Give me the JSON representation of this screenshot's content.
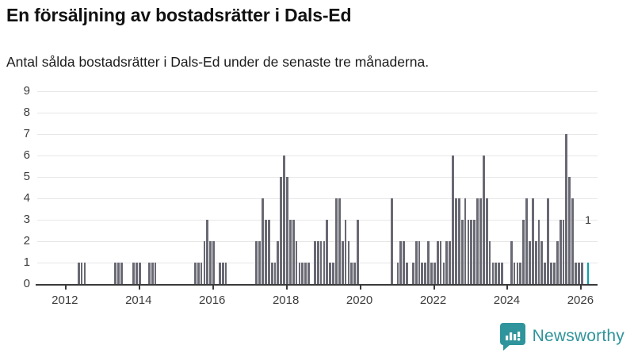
{
  "header": {
    "title": "En försäljning av bostadsrätter i Dals-Ed",
    "subtitle": "Antal sålda bostadsrätter i Dals-Ed under de senaste tre månaderna."
  },
  "chart_data": {
    "type": "bar",
    "title": "En försäljning av bostadsrätter i Dals-Ed",
    "subtitle": "Antal sålda bostadsrätter i Dals-Ed under de senaste tre månaderna.",
    "x_start_month": "2011-04",
    "x_end_month": "2026-03",
    "x": "months",
    "values": [
      0,
      0,
      0,
      0,
      0,
      0,
      0,
      0,
      0,
      0,
      0,
      0,
      0,
      1,
      1,
      1,
      0,
      0,
      0,
      0,
      0,
      0,
      0,
      0,
      0,
      1,
      1,
      1,
      0,
      0,
      0,
      1,
      1,
      1,
      0,
      0,
      1,
      1,
      1,
      0,
      0,
      0,
      0,
      0,
      0,
      0,
      0,
      0,
      0,
      0,
      0,
      1,
      1,
      1,
      2,
      3,
      2,
      2,
      0,
      1,
      1,
      1,
      0,
      0,
      0,
      0,
      0,
      0,
      0,
      0,
      0,
      2,
      2,
      4,
      3,
      3,
      1,
      1,
      2,
      5,
      6,
      5,
      3,
      3,
      2,
      1,
      1,
      1,
      1,
      0,
      2,
      2,
      2,
      2,
      3,
      1,
      1,
      4,
      4,
      2,
      3,
      2,
      1,
      1,
      3,
      0,
      0,
      0,
      0,
      0,
      0,
      0,
      0,
      0,
      0,
      4,
      0,
      1,
      2,
      2,
      1,
      0,
      1,
      2,
      2,
      1,
      1,
      2,
      1,
      1,
      2,
      2,
      1,
      2,
      2,
      6,
      4,
      4,
      3,
      4,
      3,
      3,
      3,
      4,
      4,
      6,
      4,
      2,
      1,
      1,
      1,
      1,
      0,
      0,
      2,
      1,
      1,
      1,
      3,
      4,
      2,
      4,
      2,
      3,
      2,
      1,
      4,
      1,
      1,
      2,
      3,
      3,
      7,
      5,
      4,
      1,
      1,
      1,
      0,
      1
    ],
    "highlight_last_bar": true,
    "last_value_label": "1",
    "ylim": [
      0,
      9
    ],
    "yticks": [
      0,
      1,
      2,
      3,
      4,
      5,
      6,
      7,
      8,
      9
    ],
    "xtick_years": [
      "2012",
      "2014",
      "2016",
      "2018",
      "2020",
      "2022",
      "2024",
      "2026"
    ],
    "grid": "horizontal",
    "legend": "none",
    "colors": {
      "bar": "#696974",
      "highlight": "#0aa2aa"
    }
  },
  "annotation": {
    "last_value": "1"
  },
  "footer": {
    "brand": "Newsworthy",
    "logo_icon": "newsworthy-bubble-barchart-icon",
    "brand_color": "#2f949b"
  }
}
